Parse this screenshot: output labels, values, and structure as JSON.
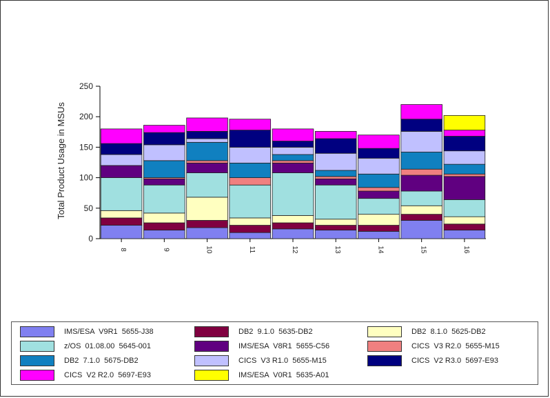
{
  "chart_data": {
    "type": "bar",
    "stacked": true,
    "ylabel": "Total Product Usage in MSUs",
    "xlabel": "",
    "ylim": [
      0,
      250
    ],
    "yticks": [
      0,
      50,
      100,
      150,
      200,
      250
    ],
    "categories": [
      "8",
      "9",
      "10",
      "11",
      "12",
      "13",
      "14",
      "15",
      "16"
    ],
    "series": [
      {
        "name": "IMS/ESA  V9R1  5655-J38",
        "color": "#8080f0",
        "values": [
          22,
          14,
          18,
          10,
          16,
          14,
          12,
          30,
          14
        ]
      },
      {
        "name": "DB2  9.1.0  5635-DB2",
        "color": "#800040",
        "values": [
          12,
          12,
          12,
          12,
          10,
          8,
          10,
          10,
          10
        ]
      },
      {
        "name": "DB2  8.1.0  5625-DB2",
        "color": "#ffffc0",
        "values": [
          12,
          16,
          38,
          12,
          12,
          10,
          18,
          14,
          12
        ]
      },
      {
        "name": "z/OS  01.08.00  5645-001",
        "color": "#a0e0e0",
        "values": [
          54,
          46,
          40,
          54,
          70,
          56,
          26,
          24,
          28
        ]
      },
      {
        "name": "IMS/ESA  V8R1  5655-C56",
        "color": "#600080",
        "values": [
          20,
          10,
          16,
          0,
          16,
          10,
          12,
          26,
          38
        ]
      },
      {
        "name": "CICS  V3 R2.0  5655-M15",
        "color": "#f08080",
        "values": [
          0,
          2,
          4,
          12,
          4,
          4,
          6,
          10,
          4
        ]
      },
      {
        "name": "DB2  7.1.0  5675-DB2",
        "color": "#1080c0",
        "values": [
          0,
          28,
          30,
          24,
          10,
          10,
          22,
          28,
          16
        ]
      },
      {
        "name": "CICS  V3 R1.0  5655-M15",
        "color": "#c0c0ff",
        "values": [
          18,
          26,
          6,
          26,
          12,
          28,
          26,
          34,
          22
        ]
      },
      {
        "name": "CICS  V2 R3.0  5697-E93",
        "color": "#000080",
        "values": [
          18,
          20,
          12,
          28,
          10,
          24,
          16,
          20,
          24
        ]
      },
      {
        "name": "CICS  V2 R2.0  5697-E93",
        "color": "#ff00ff",
        "values": [
          24,
          12,
          22,
          18,
          20,
          12,
          22,
          24,
          10
        ]
      },
      {
        "name": "IMS/ESA  V0R1  5635-A01",
        "color": "#ffff00",
        "values": [
          0,
          0,
          0,
          0,
          0,
          0,
          0,
          0,
          24
        ]
      }
    ],
    "legend_position": "bottom",
    "grid": false
  }
}
